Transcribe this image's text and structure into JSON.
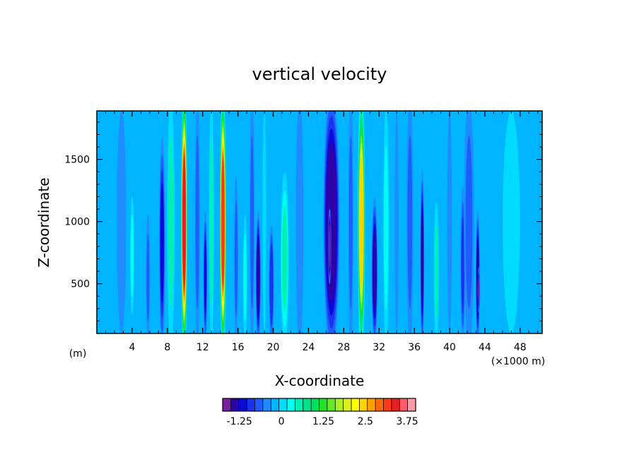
{
  "chart_data": {
    "type": "heatmap",
    "title": "vertical velocity",
    "xlabel": "X-coordinate",
    "ylabel": "Z-coordinate",
    "x_unit_left": "(m)",
    "x_unit_right": "(×1000 m)",
    "xlim": [
      0,
      50.5
    ],
    "ylim": [
      100,
      1890
    ],
    "x_ticks": [
      4,
      8,
      12,
      16,
      20,
      24,
      28,
      32,
      36,
      40,
      44,
      48
    ],
    "x_tick_labels": [
      "4",
      "8",
      "12",
      "16",
      "20",
      "24",
      "28",
      "32",
      "36",
      "40",
      "44",
      "48"
    ],
    "y_ticks": [
      500,
      1000,
      1500
    ],
    "y_tick_labels": [
      "500",
      "1000",
      "1500"
    ],
    "grid": false,
    "colorbar": {
      "range": [
        -1.75,
        4.0
      ],
      "step": 0.25,
      "tick_values": [
        -1.25,
        0,
        1.25,
        2.5,
        3.75
      ],
      "tick_labels": [
        "-1.25",
        "0",
        "1.25",
        "2.5",
        "3.75"
      ],
      "colors": [
        "#7a1fa0",
        "#2e00a8",
        "#0a0ad8",
        "#1a32f0",
        "#1e5cff",
        "#1e8cff",
        "#00b4ff",
        "#00dcff",
        "#00ffee",
        "#00f0b0",
        "#00e38a",
        "#00e060",
        "#22e024",
        "#66e82a",
        "#a8f028",
        "#dcf020",
        "#ffff00",
        "#ffd200",
        "#ffa000",
        "#ff6a00",
        "#ff3a14",
        "#e61e1e",
        "#ff5a6a",
        "#ff9aa8"
      ]
    },
    "background_value": -0.1,
    "series": [
      {
        "x": 2.8,
        "value": -0.3,
        "width": 1.6,
        "z_range": [
          100,
          1890
        ]
      },
      {
        "x": 4.0,
        "value": 0.3,
        "width": 0.5,
        "z_range": [
          300,
          1150
        ]
      },
      {
        "x": 5.8,
        "value": -0.7,
        "width": 0.5,
        "z_range": [
          100,
          1000
        ]
      },
      {
        "x": 7.4,
        "value": -1.1,
        "width": 0.6,
        "z_range": [
          100,
          1550
        ]
      },
      {
        "x": 8.4,
        "value": 0.5,
        "width": 0.9,
        "z_range": [
          100,
          1890
        ]
      },
      {
        "x": 9.9,
        "value": 3.6,
        "width": 0.6,
        "z_range": [
          100,
          1890
        ]
      },
      {
        "x": 11.4,
        "value": -0.6,
        "width": 0.6,
        "z_range": [
          100,
          1890
        ]
      },
      {
        "x": 12.3,
        "value": -1.1,
        "width": 0.4,
        "z_range": [
          100,
          1000
        ]
      },
      {
        "x": 13.0,
        "value": 0.5,
        "width": 0.6,
        "z_range": [
          100,
          1890
        ]
      },
      {
        "x": 14.3,
        "value": 3.4,
        "width": 0.6,
        "z_range": [
          100,
          1890
        ]
      },
      {
        "x": 15.8,
        "value": -0.7,
        "width": 0.5,
        "z_range": [
          100,
          1300
        ]
      },
      {
        "x": 16.8,
        "value": 0.3,
        "width": 0.5,
        "z_range": [
          100,
          1000
        ]
      },
      {
        "x": 17.6,
        "value": -0.7,
        "width": 0.6,
        "z_range": [
          100,
          1890
        ]
      },
      {
        "x": 18.3,
        "value": -1.4,
        "width": 0.5,
        "z_range": [
          100,
          1000
        ]
      },
      {
        "x": 19.0,
        "value": 0.2,
        "width": 0.6,
        "z_range": [
          100,
          1890
        ]
      },
      {
        "x": 19.8,
        "value": -1.0,
        "width": 0.5,
        "z_range": [
          100,
          900
        ]
      },
      {
        "x": 21.3,
        "value": 0.6,
        "width": 0.9,
        "z_range": [
          100,
          1300
        ]
      },
      {
        "x": 23.0,
        "value": -0.5,
        "width": 0.9,
        "z_range": [
          100,
          1890
        ]
      },
      {
        "x": 26.6,
        "value": -1.5,
        "width": 1.6,
        "z_range": [
          100,
          1890
        ]
      },
      {
        "x": 26.4,
        "value": -1.75,
        "width": 0.3,
        "z_range": [
          550,
          1050
        ]
      },
      {
        "x": 28.8,
        "value": -0.6,
        "width": 0.6,
        "z_range": [
          100,
          1890
        ]
      },
      {
        "x": 30.0,
        "value": 2.5,
        "width": 0.7,
        "z_range": [
          100,
          1890
        ]
      },
      {
        "x": 31.5,
        "value": -1.3,
        "width": 0.6,
        "z_range": [
          100,
          1100
        ]
      },
      {
        "x": 32.8,
        "value": 0.4,
        "width": 0.7,
        "z_range": [
          100,
          1800
        ]
      },
      {
        "x": 34.0,
        "value": -0.4,
        "width": 0.7,
        "z_range": [
          100,
          1890
        ]
      },
      {
        "x": 35.5,
        "value": -0.7,
        "width": 0.8,
        "z_range": [
          100,
          1890
        ]
      },
      {
        "x": 36.9,
        "value": -1.4,
        "width": 0.4,
        "z_range": [
          100,
          1300
        ]
      },
      {
        "x": 38.5,
        "value": 0.5,
        "width": 0.6,
        "z_range": [
          100,
          1100
        ]
      },
      {
        "x": 40.0,
        "value": -0.3,
        "width": 0.8,
        "z_range": [
          100,
          1890
        ]
      },
      {
        "x": 41.5,
        "value": -0.8,
        "width": 0.5,
        "z_range": [
          100,
          1200
        ]
      },
      {
        "x": 42.2,
        "value": -0.6,
        "width": 1.2,
        "z_range": [
          100,
          1890
        ]
      },
      {
        "x": 43.2,
        "value": -1.4,
        "width": 0.4,
        "z_range": [
          100,
          1000
        ]
      },
      {
        "x": 43.3,
        "value": -1.75,
        "width": 0.2,
        "z_range": [
          300,
          600
        ]
      },
      {
        "x": 47.0,
        "value": 0.0,
        "width": 3.0,
        "z_range": [
          100,
          1890
        ]
      }
    ]
  }
}
